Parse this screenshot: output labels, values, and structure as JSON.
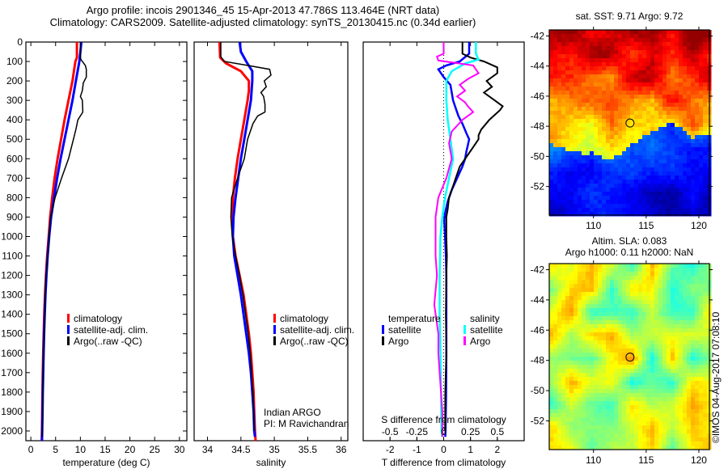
{
  "titles": {
    "line1": "Argo profile: incois 2901346_45 15-Apr-2013 47.786S 113.464E (NRT data)",
    "line2": "Climatology: CARS2009. Satellite-adjusted climatology: synTS_20130415.nc (0.34d earlier)"
  },
  "credit": "©IMOS 04-Aug-2017 07:08:10",
  "chart_data": [
    {
      "id": "temperature",
      "type": "line",
      "xlabel": "temperature (deg C)",
      "ylabel": "",
      "xlim": [
        -1,
        31.5
      ],
      "ylim": [
        2050,
        0
      ],
      "xticks": [
        0,
        5,
        10,
        15,
        20,
        25,
        30
      ],
      "yticks": [
        0,
        100,
        200,
        300,
        400,
        500,
        600,
        700,
        800,
        900,
        1000,
        1100,
        1200,
        1300,
        1400,
        1500,
        1600,
        1700,
        1800,
        1900,
        2000
      ],
      "legend": {
        "placement": "center",
        "entries": [
          {
            "label": "climatology",
            "color": "#ff0000"
          },
          {
            "label": "satellite-adj. clim.",
            "color": "#0000ff"
          },
          {
            "label": "Argo(..raw -QC)",
            "color": "#000000"
          }
        ]
      },
      "series": [
        {
          "name": "climatology",
          "color": "#ff0000",
          "width": 3,
          "depth": [
            0,
            80,
            100,
            200,
            300,
            400,
            500,
            600,
            700,
            800,
            900,
            1000,
            1100,
            1200,
            1300,
            1400,
            1500,
            1600,
            1700,
            1800,
            1900,
            2000,
            2050
          ],
          "value": [
            9.3,
            9.3,
            9.0,
            8.4,
            7.6,
            6.8,
            6.1,
            5.4,
            4.8,
            4.3,
            3.9,
            3.6,
            3.3,
            3.05,
            2.85,
            2.7,
            2.6,
            2.5,
            2.42,
            2.35,
            2.3,
            2.25,
            2.2
          ]
        },
        {
          "name": "satellite-adj. clim.",
          "color": "#0000ff",
          "width": 3,
          "depth": [
            0,
            50,
            100,
            200,
            300,
            400,
            500,
            600,
            700,
            800,
            900,
            1000,
            1100,
            1200,
            1300,
            1400,
            1500,
            1600,
            1700,
            1800,
            1900,
            2000,
            2050
          ],
          "value": [
            10.2,
            10.0,
            9.8,
            9.1,
            8.4,
            7.6,
            6.8,
            6.0,
            5.3,
            4.7,
            4.1,
            3.7,
            3.4,
            3.15,
            2.95,
            2.8,
            2.68,
            2.58,
            2.5,
            2.42,
            2.36,
            2.3,
            2.25
          ]
        },
        {
          "name": "Argo(..raw -QC)",
          "color": "#000000",
          "width": 1.5,
          "depth": [
            0,
            75,
            90,
            120,
            140,
            180,
            210,
            250,
            280,
            300,
            360,
            400,
            450,
            500,
            600,
            700,
            800,
            900,
            1000,
            1100,
            1200,
            1300,
            1400,
            1500,
            1600,
            1700,
            1800,
            1900,
            2000,
            2030
          ],
          "value": [
            10.0,
            10.0,
            10.1,
            11.0,
            11.2,
            11.2,
            10.6,
            10.4,
            10.0,
            10.4,
            10.5,
            9.5,
            9.1,
            8.6,
            7.6,
            6.2,
            4.9,
            4.0,
            3.7,
            3.4,
            3.1,
            2.9,
            2.8,
            2.7,
            2.6,
            2.5,
            2.42,
            2.36,
            2.3,
            2.28
          ]
        }
      ]
    },
    {
      "id": "salinity",
      "type": "line",
      "xlabel": "salinity",
      "xlim": [
        33.8,
        36.1
      ],
      "ylim": [
        2050,
        0
      ],
      "xticks": [
        34,
        34.5,
        35,
        35.5,
        36
      ],
      "xticklabels": [
        "34",
        "34.5",
        "35",
        "35.5",
        "36"
      ],
      "legend": {
        "placement": "center-right",
        "entries": [
          {
            "label": "climatology",
            "color": "#ff0000"
          },
          {
            "label": "satellite-adj. clim.",
            "color": "#0000ff"
          },
          {
            "label": "Argo(..raw -QC)",
            "color": "#000000"
          }
        ]
      },
      "annotation": [
        "Indian ARGO",
        "PI: M Ravichandran"
      ],
      "series": [
        {
          "name": "climatology",
          "color": "#ff0000",
          "width": 3,
          "depth": [
            0,
            80,
            110,
            150,
            200,
            250,
            300,
            400,
            500,
            600,
            700,
            800,
            900,
            1000,
            1100,
            1200,
            1300,
            1400,
            1500,
            1600,
            1700,
            1800,
            1900,
            2000,
            2050
          ],
          "value": [
            34.18,
            34.19,
            34.28,
            34.5,
            34.62,
            34.62,
            34.6,
            34.55,
            34.5,
            34.45,
            34.41,
            34.38,
            34.37,
            34.38,
            34.42,
            34.48,
            34.54,
            34.58,
            34.62,
            34.65,
            34.67,
            34.69,
            34.7,
            34.71,
            34.72
          ]
        },
        {
          "name": "satellite-adj. clim.",
          "color": "#0000ff",
          "width": 3,
          "depth": [
            0,
            50,
            100,
            150,
            200,
            300,
            400,
            500,
            600,
            700,
            800,
            900,
            1000,
            1100,
            1200,
            1300,
            1400,
            1500,
            1600,
            1700,
            1800,
            1900,
            2000,
            2030
          ],
          "value": [
            34.48,
            34.5,
            34.58,
            34.67,
            34.67,
            34.65,
            34.6,
            34.55,
            34.5,
            34.46,
            34.42,
            34.39,
            34.38,
            34.4,
            34.45,
            34.5,
            34.54,
            34.58,
            34.62,
            34.65,
            34.67,
            34.69,
            34.7,
            34.71
          ]
        },
        {
          "name": "Argo(..raw -QC)",
          "color": "#000000",
          "width": 1.5,
          "depth": [
            0,
            75,
            100,
            120,
            140,
            170,
            200,
            230,
            260,
            280,
            320,
            360,
            380,
            420,
            500,
            600,
            700,
            800,
            900,
            1000,
            1100,
            1200,
            1300,
            1400,
            1500,
            1600,
            1700,
            1800,
            1900,
            2000
          ],
          "value": [
            34.2,
            34.2,
            34.25,
            34.6,
            34.93,
            34.95,
            34.85,
            34.88,
            34.8,
            34.84,
            34.86,
            34.86,
            34.75,
            34.68,
            34.6,
            34.55,
            34.45,
            34.36,
            34.35,
            34.37,
            34.42,
            34.48,
            34.53,
            34.57,
            34.61,
            34.64,
            34.66,
            34.68,
            34.69,
            34.7
          ]
        }
      ]
    },
    {
      "id": "difference",
      "type": "line",
      "xlabel": "T difference from climatology",
      "xlabel2": "S difference from climatology",
      "xlim": [
        -3,
        3
      ],
      "ylim": [
        2050,
        0
      ],
      "xticks": [
        -2,
        -1,
        0,
        1,
        2
      ],
      "xticklabels": [
        "-2",
        "-1",
        "0",
        "1",
        "2"
      ],
      "sticks": [
        "-0.5",
        "-0.25",
        "0",
        "0.25",
        "0.5"
      ],
      "legend": {
        "placement": "lower-center",
        "groups": [
          {
            "title": "temperature",
            "entries": [
              {
                "label": "satellite",
                "color": "#0000ff"
              },
              {
                "label": "Argo",
                "color": "#000000"
              }
            ]
          },
          {
            "title": "salinity",
            "entries": [
              {
                "label": "satellite",
                "color": "#00ffff"
              },
              {
                "label": "Argo",
                "color": "#ff00ff"
              }
            ]
          }
        ]
      },
      "series": [
        {
          "name": "temperature satellite",
          "color": "#0000ff",
          "width": 2.5,
          "depth": [
            0,
            60,
            100,
            120,
            140,
            180,
            220,
            260,
            300,
            340,
            380,
            420,
            470,
            500,
            530,
            560,
            600,
            640,
            700,
            760,
            820,
            880,
            920,
            1000,
            1100,
            1200,
            1400,
            1600,
            1800,
            2000,
            2030
          ],
          "value": [
            0.95,
            0.95,
            0.6,
            0.1,
            -0.2,
            0.0,
            0.25,
            0.3,
            0.35,
            0.45,
            0.55,
            0.7,
            0.85,
            0.95,
            0.9,
            0.85,
            0.8,
            0.7,
            0.5,
            0.3,
            0.15,
            0.05,
            0.02,
            0.05,
            0.08,
            0.1,
            0.1,
            0.1,
            0.09,
            0.07,
            0.06
          ]
        },
        {
          "name": "temperature Argo",
          "color": "#000000",
          "width": 2,
          "depth": [
            0,
            60,
            80,
            100,
            130,
            160,
            200,
            230,
            260,
            300,
            330,
            350,
            400,
            450,
            480,
            500,
            540,
            580,
            640,
            700,
            760,
            800,
            860,
            900,
            1000,
            1100,
            1200,
            1400,
            1600,
            1800,
            2000
          ],
          "value": [
            0.7,
            0.7,
            1.0,
            1.5,
            2.0,
            2.0,
            1.6,
            1.8,
            1.5,
            1.9,
            2.2,
            2.1,
            1.7,
            1.4,
            1.3,
            1.3,
            1.1,
            0.9,
            0.6,
            0.45,
            0.3,
            0.2,
            0.15,
            0.1,
            0.1,
            0.12,
            0.1,
            0.08,
            0.1,
            0.06,
            0.05
          ]
        },
        {
          "name": "salinity satellite",
          "color": "#00ffff",
          "width": 2.5,
          "depth": [
            0,
            60,
            90,
            110,
            150,
            200,
            300,
            400,
            500,
            600,
            700,
            800,
            900,
            1000,
            1200,
            1400,
            1600,
            1800,
            2000,
            2030
          ],
          "value": [
            1.2,
            1.2,
            1.3,
            0.8,
            0.3,
            0.1,
            0.1,
            0.15,
            0.25,
            0.35,
            0.2,
            0.05,
            -0.05,
            -0.12,
            -0.15,
            -0.15,
            -0.12,
            -0.1,
            -0.08,
            -0.05
          ]
        },
        {
          "name": "salinity Argo",
          "color": "#ff00ff",
          "width": 2,
          "depth": [
            0,
            60,
            75,
            95,
            120,
            160,
            190,
            220,
            250,
            280,
            310,
            330,
            360,
            400,
            460,
            520,
            600,
            700,
            800,
            900,
            1000,
            1100,
            1200,
            1350,
            1500,
            1600,
            1700,
            1800,
            1900,
            2000,
            2030
          ],
          "value": [
            0.0,
            0.0,
            -0.25,
            -0.2,
            1.1,
            1.3,
            0.9,
            0.6,
            0.8,
            0.5,
            0.8,
            0.9,
            1.1,
            0.7,
            0.3,
            0.2,
            0.3,
            0.1,
            -0.2,
            -0.3,
            -0.3,
            -0.3,
            -0.25,
            -0.35,
            -0.2,
            -0.2,
            -0.15,
            -0.1,
            -0.05,
            -0.05,
            -0.05
          ]
        }
      ]
    }
  ],
  "maps": [
    {
      "id": "sst-map",
      "title": "sat. SST: 9.71 Argo: 9.72",
      "xticks": [
        110,
        115,
        120
      ],
      "yticks": [
        -42,
        -44,
        -46,
        -48,
        -50,
        -52
      ],
      "xlim": [
        105.8,
        121.0
      ],
      "ylim": [
        -53.9,
        -41.6
      ],
      "marker": {
        "lon": 113.464,
        "lat": -47.786
      },
      "colormap": "jet",
      "seed": 7
    },
    {
      "id": "sla-map",
      "title": "Altim. SLA: 0.083",
      "subtitle": "Argo h1000: 0.11 h2000: NaN",
      "xticks": [
        110,
        115,
        120
      ],
      "yticks": [
        -42,
        -44,
        -46,
        -48,
        -50,
        -52
      ],
      "xlim": [
        105.8,
        121.0
      ],
      "ylim": [
        -53.9,
        -41.6
      ],
      "marker": {
        "lon": 113.464,
        "lat": -47.786
      },
      "colormap": "jet",
      "seed": 13
    }
  ]
}
